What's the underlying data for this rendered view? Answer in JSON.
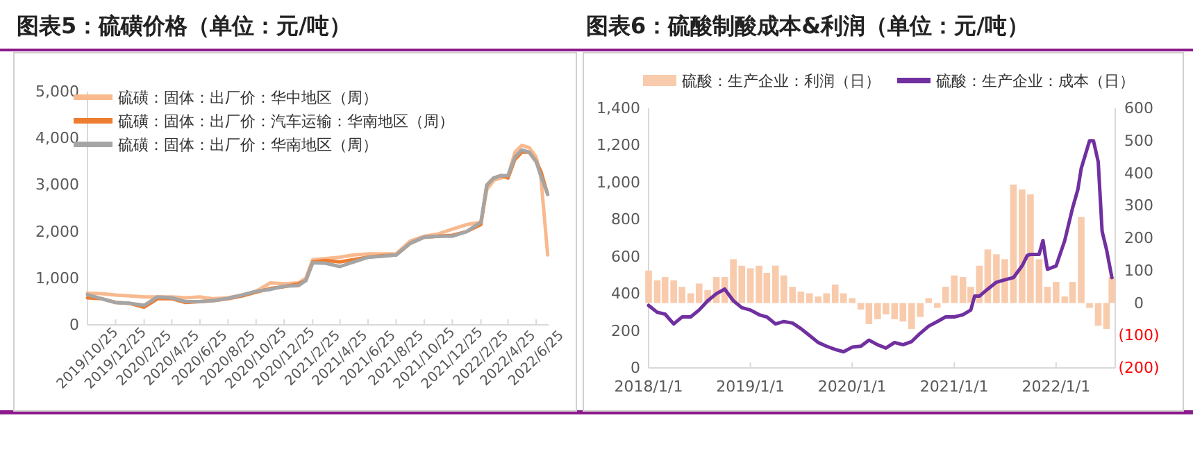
{
  "chart_data": [
    {
      "type": "line",
      "title": "图表5：硫磺价格（单位：元/吨）",
      "legend": "top left",
      "grid": false,
      "x": [
        "2019-10-25",
        "2019-11-25",
        "2019-12-25",
        "2020-01-25",
        "2020-02-25",
        "2020-03-25",
        "2020-04-25",
        "2020-05-25",
        "2020-06-25",
        "2020-07-25",
        "2020-08-25",
        "2020-09-25",
        "2020-10-25",
        "2020-11-25",
        "2020-12-25",
        "2021-01-25",
        "2021-02-10",
        "2021-02-25",
        "2021-03-25",
        "2021-04-25",
        "2021-05-25",
        "2021-06-25",
        "2021-07-25",
        "2021-08-25",
        "2021-09-25",
        "2021-10-25",
        "2021-11-25",
        "2021-12-25",
        "2022-01-25",
        "2022-02-25",
        "2022-03-10",
        "2022-03-25",
        "2022-04-10",
        "2022-04-25",
        "2022-05-10",
        "2022-05-25",
        "2022-06-10",
        "2022-06-25",
        "2022-07-05",
        "2022-07-20"
      ],
      "series": [
        {
          "name": "硫磺：固体：出厂价：华中地区（周）",
          "color": "#f8b98f",
          "values": [
            680,
            670,
            640,
            620,
            600,
            600,
            600,
            580,
            600,
            560,
            580,
            640,
            720,
            900,
            880,
            900,
            1000,
            1400,
            1420,
            1450,
            1500,
            1520,
            1520,
            1520,
            1800,
            1900,
            1950,
            2050,
            2150,
            2200,
            2900,
            3100,
            3150,
            3200,
            3700,
            3850,
            3800,
            3600,
            3200,
            1500
          ]
        },
        {
          "name": "硫磺：固体：出厂价：汽车运输：华南地区（周）",
          "color": "#ed7d31",
          "values": [
            580,
            560,
            480,
            460,
            380,
            560,
            560,
            480,
            500,
            520,
            560,
            620,
            700,
            780,
            820,
            880,
            950,
            1350,
            1380,
            1350,
            1400,
            1450,
            1480,
            1500,
            1750,
            1880,
            1900,
            1920,
            2000,
            2150,
            3000,
            3150,
            3200,
            3150,
            3550,
            3700,
            3700,
            3500,
            3300,
            2800
          ]
        },
        {
          "name": "硫磺：固体：出厂价：华南地区（周）",
          "color": "#a5a5a5",
          "values": [
            650,
            560,
            480,
            460,
            420,
            600,
            580,
            500,
            500,
            520,
            570,
            640,
            720,
            760,
            830,
            840,
            950,
            1330,
            1320,
            1250,
            1350,
            1450,
            1470,
            1500,
            1750,
            1880,
            1900,
            1900,
            2000,
            2200,
            3000,
            3150,
            3200,
            3200,
            3600,
            3750,
            3700,
            3500,
            3200,
            2800
          ]
        }
      ],
      "xlim": [
        "2019-10-25",
        "2022-07-22"
      ],
      "xticks": [
        {
          "value": "2019-10-25",
          "label": "2019/10/25"
        },
        {
          "value": "2019-12-25",
          "label": "2019/12/25"
        },
        {
          "value": "2020-02-25",
          "label": "2020/2/25"
        },
        {
          "value": "2020-04-25",
          "label": "2020/4/25"
        },
        {
          "value": "2020-06-25",
          "label": "2020/6/25"
        },
        {
          "value": "2020-08-25",
          "label": "2020/8/25"
        },
        {
          "value": "2020-10-25",
          "label": "2020/10/25"
        },
        {
          "value": "2020-12-25",
          "label": "2020/12/25"
        },
        {
          "value": "2021-02-25",
          "label": "2021/2/25"
        },
        {
          "value": "2021-04-25",
          "label": "2021/4/25"
        },
        {
          "value": "2021-06-25",
          "label": "2021/6/25"
        },
        {
          "value": "2021-08-25",
          "label": "2021/8/25"
        },
        {
          "value": "2021-10-25",
          "label": "2021/10/25"
        },
        {
          "value": "2021-12-25",
          "label": "2021/12/25"
        },
        {
          "value": "2022-02-25",
          "label": "2022/2/25"
        },
        {
          "value": "2022-04-25",
          "label": "2022/4/25"
        },
        {
          "value": "2022-06-25",
          "label": "2022/6/25"
        }
      ],
      "ylim": [
        0,
        5000
      ],
      "yticks": [
        0,
        {
          "value": 1000,
          "label": "1,000"
        },
        {
          "value": 2000,
          "label": "2,000"
        },
        {
          "value": 3000,
          "label": "3,000"
        },
        {
          "value": 4000,
          "label": "4,000"
        },
        {
          "value": 5000,
          "label": "5,000"
        }
      ]
    },
    {
      "type": "bar",
      "title": "图表6：硫酸制酸成本&利润（单位：元/吨）",
      "legend": "top",
      "grid": false,
      "series": [
        {
          "name": "硫酸：生产企业：利润（日）",
          "axis": "y2",
          "color": "#f8cbad",
          "x": [
            "2018-01-01",
            "2018-02-01",
            "2018-03-01",
            "2018-04-01",
            "2018-05-01",
            "2018-06-01",
            "2018-07-01",
            "2018-08-01",
            "2018-09-01",
            "2018-10-01",
            "2018-11-01",
            "2018-12-01",
            "2019-01-01",
            "2019-02-01",
            "2019-03-01",
            "2019-04-01",
            "2019-05-01",
            "2019-06-01",
            "2019-07-01",
            "2019-08-01",
            "2019-09-01",
            "2019-10-01",
            "2019-11-01",
            "2019-12-01",
            "2020-01-01",
            "2020-02-01",
            "2020-03-01",
            "2020-04-01",
            "2020-05-01",
            "2020-06-01",
            "2020-07-01",
            "2020-08-01",
            "2020-09-01",
            "2020-10-01",
            "2020-11-01",
            "2020-12-01",
            "2021-01-01",
            "2021-02-01",
            "2021-03-01",
            "2021-04-01",
            "2021-05-01",
            "2021-06-01",
            "2021-07-01",
            "2021-08-01",
            "2021-09-01",
            "2021-10-01",
            "2021-11-01",
            "2021-12-01",
            "2022-01-01",
            "2022-02-01",
            "2022-03-01",
            "2022-04-01",
            "2022-05-01",
            "2022-06-01",
            "2022-07-01",
            "2022-07-20"
          ],
          "values": [
            100,
            70,
            80,
            70,
            50,
            30,
            60,
            40,
            80,
            80,
            135,
            115,
            107,
            115,
            93,
            115,
            85,
            50,
            35,
            30,
            20,
            30,
            57,
            30,
            15,
            -20,
            -65,
            -50,
            -35,
            -50,
            -57,
            -80,
            -43,
            15,
            -15,
            50,
            85,
            80,
            50,
            115,
            165,
            150,
            135,
            365,
            350,
            335,
            135,
            50,
            65,
            20,
            65,
            265,
            -15,
            -70,
            -80,
            80
          ]
        },
        {
          "name": "硫酸：生产企业：成本（日）",
          "type": "line",
          "color": "#7030a0",
          "x": [
            "2018-01-01",
            "2018-02-01",
            "2018-03-01",
            "2018-04-01",
            "2018-05-01",
            "2018-06-01",
            "2018-07-01",
            "2018-08-01",
            "2018-09-01",
            "2018-10-01",
            "2018-11-01",
            "2018-12-01",
            "2019-01-01",
            "2019-02-01",
            "2019-03-01",
            "2019-04-01",
            "2019-05-01",
            "2019-06-01",
            "2019-07-01",
            "2019-08-01",
            "2019-09-01",
            "2019-10-01",
            "2019-11-01",
            "2019-12-01",
            "2020-01-01",
            "2020-02-01",
            "2020-03-01",
            "2020-04-01",
            "2020-05-01",
            "2020-06-01",
            "2020-07-01",
            "2020-08-01",
            "2020-09-01",
            "2020-10-01",
            "2020-11-01",
            "2020-12-01",
            "2021-01-01",
            "2021-02-01",
            "2021-03-01",
            "2021-03-15",
            "2021-04-01",
            "2021-05-01",
            "2021-06-01",
            "2021-07-01",
            "2021-08-01",
            "2021-09-01",
            "2021-09-20",
            "2021-10-01",
            "2021-11-01",
            "2021-11-15",
            "2021-11-25",
            "2021-12-01",
            "2022-01-01",
            "2022-02-01",
            "2022-03-01",
            "2022-03-20",
            "2022-04-01",
            "2022-05-01",
            "2022-05-15",
            "2022-06-01",
            "2022-06-15",
            "2022-07-01",
            "2022-07-20"
          ],
          "values": [
            337,
            300,
            290,
            237,
            275,
            275,
            312,
            362,
            400,
            425,
            362,
            325,
            312,
            287,
            275,
            237,
            250,
            242,
            212,
            175,
            137,
            117,
            100,
            87,
            112,
            117,
            150,
            125,
            107,
            137,
            125,
            142,
            187,
            225,
            250,
            275,
            275,
            287,
            312,
            387,
            387,
            425,
            462,
            475,
            487,
            550,
            607,
            612,
            612,
            687,
            587,
            532,
            550,
            687,
            862,
            962,
            1075,
            1225,
            1225,
            1112,
            737,
            637,
            487
          ]
        }
      ],
      "xlim": [
        "2018-01-01",
        "2022-08-01"
      ],
      "xticks": [
        {
          "value": "2018-01-01",
          "label": "2018/1/1"
        },
        {
          "value": "2019-01-01",
          "label": "2019/1/1"
        },
        {
          "value": "2020-01-01",
          "label": "2020/1/1"
        },
        {
          "value": "2021-01-01",
          "label": "2021/1/1"
        },
        {
          "value": "2022-01-01",
          "label": "2022/1/1"
        }
      ],
      "ylim": [
        0,
        1400
      ],
      "yticks": [
        0,
        200,
        400,
        600,
        800,
        {
          "value": 1000,
          "label": "1,000"
        },
        {
          "value": 1200,
          "label": "1,200"
        },
        {
          "value": 1400,
          "label": "1,400"
        }
      ],
      "y2lim": [
        -200,
        600
      ],
      "y2ticks": [
        {
          "value": -200,
          "label": "(200)"
        },
        {
          "value": -100,
          "label": "(100)"
        },
        0,
        100,
        200,
        300,
        400,
        500,
        600
      ]
    }
  ]
}
